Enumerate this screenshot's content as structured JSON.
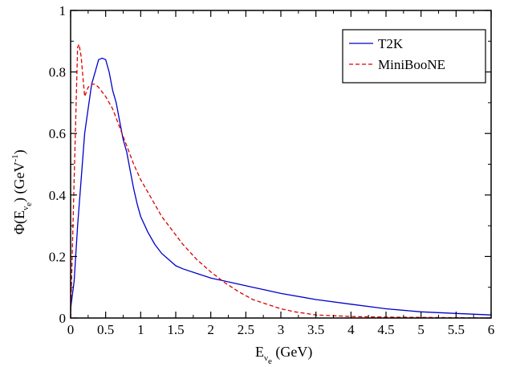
{
  "chart_data": {
    "type": "line",
    "xlabel": {
      "main": "E",
      "sub": "ν",
      "subsub": "e",
      "unit": " (GeV)"
    },
    "ylabel": {
      "prefix": "Φ(E",
      "sub": "ν",
      "subsub": "e",
      "suffix": ") (GeV",
      "sup": "-1",
      "end": ")"
    },
    "xlim": [
      0,
      6
    ],
    "ylim": [
      0,
      1
    ],
    "xticks": [
      0,
      0.5,
      1,
      1.5,
      2,
      2.5,
      3,
      3.5,
      4,
      4.5,
      5,
      5.5,
      6
    ],
    "xtick_labels": [
      "0",
      "0.5",
      "1",
      "1.5",
      "2",
      "2.5",
      "3",
      "3.5",
      "4",
      "4.5",
      "5",
      "5.5",
      "6"
    ],
    "yticks": [
      0,
      0.2,
      0.4,
      0.6,
      0.8,
      1
    ],
    "ytick_labels": [
      "0",
      "0.2",
      "0.4",
      "0.6",
      "0.8",
      "1"
    ],
    "legend_position": "top-right",
    "grid": false,
    "series": [
      {
        "name": "T2K",
        "color": "#0000cc",
        "style": "solid",
        "x": [
          0,
          0.05,
          0.1,
          0.15,
          0.2,
          0.25,
          0.3,
          0.35,
          0.4,
          0.45,
          0.5,
          0.55,
          0.6,
          0.65,
          0.7,
          0.75,
          0.8,
          0.85,
          0.9,
          0.95,
          1.0,
          1.1,
          1.2,
          1.3,
          1.4,
          1.5,
          1.6,
          1.8,
          2.0,
          2.2,
          2.4,
          2.6,
          2.8,
          3.0,
          3.5,
          4.0,
          4.5,
          5.0,
          5.5,
          6.0
        ],
        "y": [
          0.03,
          0.12,
          0.3,
          0.45,
          0.6,
          0.68,
          0.76,
          0.8,
          0.84,
          0.845,
          0.84,
          0.8,
          0.74,
          0.7,
          0.64,
          0.58,
          0.54,
          0.48,
          0.42,
          0.37,
          0.33,
          0.28,
          0.24,
          0.21,
          0.19,
          0.17,
          0.16,
          0.145,
          0.13,
          0.12,
          0.11,
          0.1,
          0.09,
          0.08,
          0.06,
          0.045,
          0.03,
          0.02,
          0.015,
          0.01
        ]
      },
      {
        "name": "MiniBooNE",
        "color": "#dd0000",
        "style": "dashed",
        "x": [
          0,
          0.05,
          0.1,
          0.12,
          0.15,
          0.2,
          0.25,
          0.3,
          0.35,
          0.4,
          0.5,
          0.6,
          0.7,
          0.8,
          0.9,
          1.0,
          1.1,
          1.2,
          1.3,
          1.4,
          1.5,
          1.6,
          1.8,
          2.0,
          2.2,
          2.4,
          2.6,
          2.8,
          3.0,
          3.2,
          3.5,
          4.0,
          4.5,
          5.0,
          5.5,
          6.0
        ],
        "y": [
          0.0,
          0.45,
          0.88,
          0.89,
          0.85,
          0.72,
          0.75,
          0.76,
          0.76,
          0.75,
          0.72,
          0.68,
          0.62,
          0.56,
          0.5,
          0.45,
          0.41,
          0.37,
          0.33,
          0.3,
          0.27,
          0.24,
          0.19,
          0.15,
          0.115,
          0.085,
          0.06,
          0.045,
          0.03,
          0.02,
          0.01,
          0.005,
          0.003,
          0.002,
          0.001,
          0.0
        ]
      }
    ]
  }
}
